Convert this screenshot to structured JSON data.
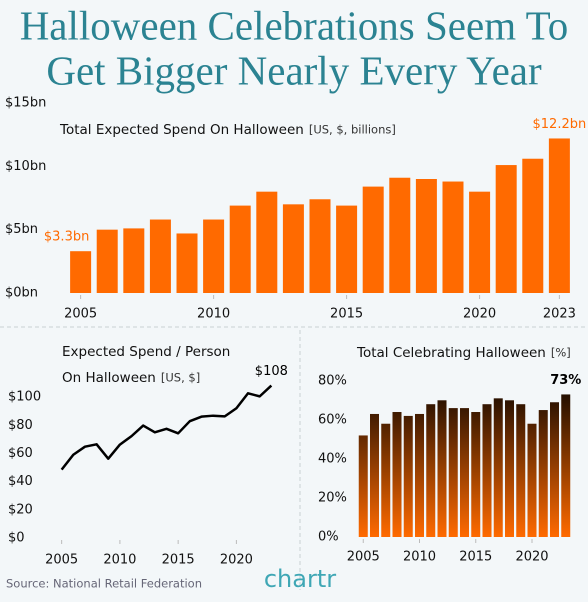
{
  "header": {
    "title": [
      "Halloween Celebrations Seem To",
      "Get Bigger Nearly Every Year"
    ]
  },
  "chart_data": [
    {
      "type": "bar",
      "title": "Total Expected Spend On Halloween",
      "units": "[US, $, billions]",
      "x": [
        2005,
        2006,
        2007,
        2008,
        2009,
        2010,
        2011,
        2012,
        2013,
        2014,
        2015,
        2016,
        2017,
        2018,
        2019,
        2020,
        2021,
        2022,
        2023
      ],
      "values": [
        3.3,
        5.0,
        5.1,
        5.8,
        4.7,
        5.8,
        6.9,
        8.0,
        7.0,
        7.4,
        6.9,
        8.4,
        9.1,
        9.0,
        8.8,
        8.0,
        10.1,
        10.6,
        12.2
      ],
      "value_labels": [
        "$3.3bn",
        null,
        null,
        null,
        null,
        null,
        null,
        null,
        null,
        null,
        null,
        null,
        null,
        null,
        null,
        null,
        null,
        null,
        "$12.2bn"
      ],
      "color": "#ff6a00",
      "xlim": [
        2004.3,
        2023.7
      ],
      "xticks": [
        2005,
        2010,
        2015,
        2020,
        2023
      ],
      "ylim": [
        0,
        15
      ],
      "yticks": [
        {
          "value": 0,
          "label": "$0bn"
        },
        {
          "value": 5,
          "label": "$5bn"
        },
        {
          "value": 10,
          "label": "$10bn"
        },
        {
          "value": 15,
          "label": "$15bn"
        }
      ]
    },
    {
      "type": "line",
      "title": [
        "Expected Spend / Person",
        "On Halloween"
      ],
      "units": "[US, $]",
      "x": [
        2005,
        2006,
        2007,
        2008,
        2009,
        2010,
        2011,
        2012,
        2013,
        2014,
        2015,
        2016,
        2017,
        2018,
        2019,
        2020,
        2021,
        2022,
        2023
      ],
      "values": [
        48.5,
        59.1,
        64.8,
        66.5,
        56.3,
        66.3,
        72.3,
        79.8,
        75.0,
        77.5,
        74.3,
        82.9,
        86.1,
        86.8,
        86.3,
        92.1,
        102.7,
        100.5,
        108.2
      ],
      "value_labels": [
        null,
        null,
        null,
        null,
        null,
        null,
        null,
        null,
        null,
        null,
        null,
        null,
        null,
        null,
        null,
        null,
        null,
        null,
        "$108"
      ],
      "color": "#000000",
      "xlim": [
        2004,
        2024
      ],
      "xticks": [
        2005,
        2010,
        2015,
        2020
      ],
      "ylim": [
        0,
        110
      ],
      "yticks": [
        {
          "value": 0,
          "label": "$0"
        },
        {
          "value": 20,
          "label": "$20"
        },
        {
          "value": 40,
          "label": "$40"
        },
        {
          "value": 60,
          "label": "$60"
        },
        {
          "value": 80,
          "label": "$80"
        },
        {
          "value": 100,
          "label": "$100"
        }
      ]
    },
    {
      "type": "bar",
      "title": "Total Celebrating Halloween",
      "units": "[%]",
      "x": [
        2005,
        2006,
        2007,
        2008,
        2009,
        2010,
        2011,
        2012,
        2013,
        2014,
        2015,
        2016,
        2017,
        2018,
        2019,
        2020,
        2021,
        2022,
        2023
      ],
      "values": [
        52,
        63,
        58,
        64,
        62,
        63,
        68,
        70,
        66,
        66,
        64,
        68,
        71,
        70,
        68,
        58,
        65,
        69,
        73
      ],
      "value_labels": [
        null,
        null,
        null,
        null,
        null,
        null,
        null,
        null,
        null,
        null,
        null,
        null,
        null,
        null,
        null,
        null,
        null,
        null,
        "73%"
      ],
      "gradient": [
        "#000000",
        "#ff6a00"
      ],
      "xlim": [
        2004,
        2024
      ],
      "xticks": [
        2005,
        2010,
        2015,
        2020
      ],
      "ylim": [
        0,
        85
      ],
      "yticks": [
        {
          "value": 0,
          "label": "0%"
        },
        {
          "value": 20,
          "label": "20%"
        },
        {
          "value": 40,
          "label": "40%"
        },
        {
          "value": 60,
          "label": "60%"
        },
        {
          "value": 80,
          "label": "80%"
        }
      ]
    }
  ],
  "footer": {
    "source": "Source: National Retail Federation",
    "logo": "chartr"
  }
}
